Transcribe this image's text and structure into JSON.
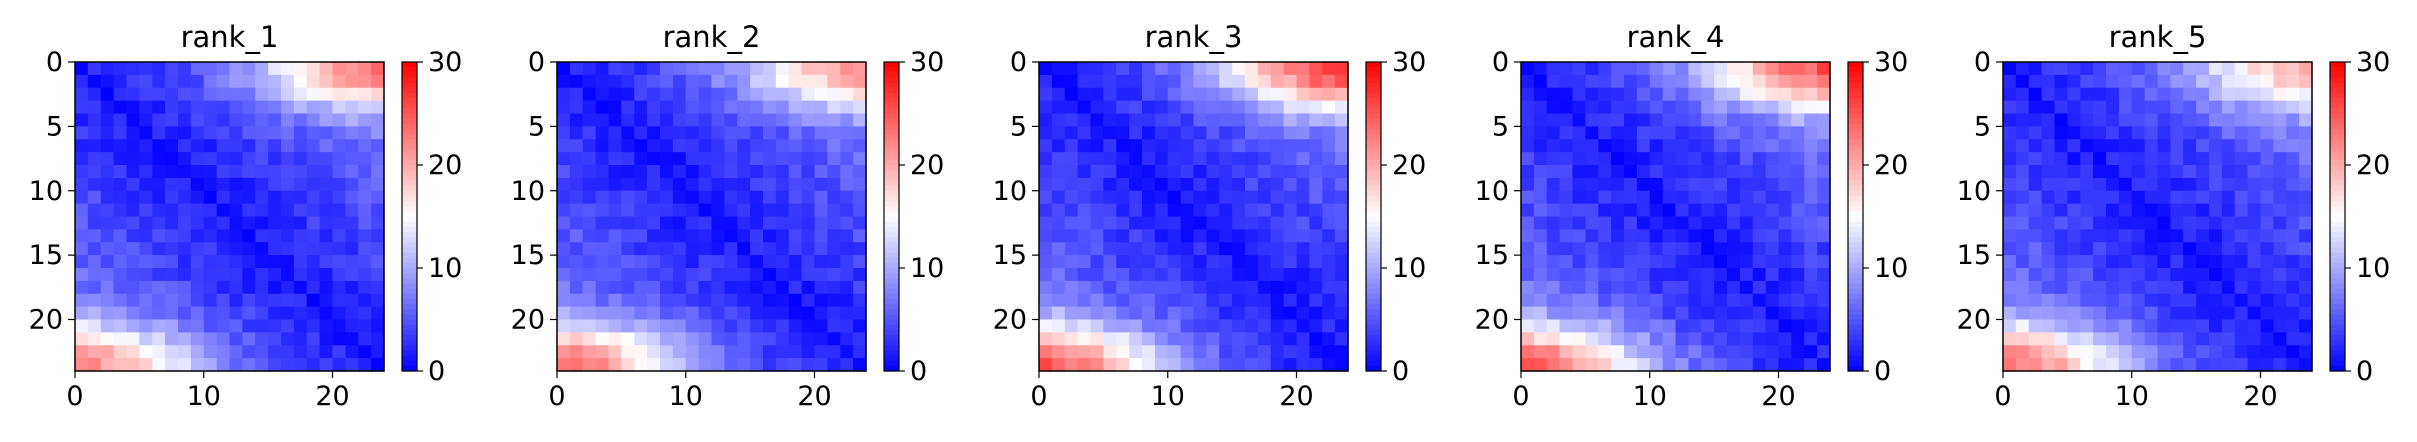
{
  "chart_data": [
    {
      "type": "heatmap",
      "title": "rank_1",
      "n": 24,
      "x_ticks": [
        0,
        10,
        20
      ],
      "y_ticks": [
        0,
        5,
        10,
        15,
        20
      ],
      "xlim": [
        0,
        24
      ],
      "ylim": [
        24,
        0
      ],
      "colorbar": {
        "range": [
          0,
          30
        ],
        "ticks": [
          0,
          10,
          20,
          30
        ],
        "colormap": "bwr"
      },
      "corner_profile": {
        "top_right_max": 23,
        "bottom_left_max": 22,
        "diagonal": 0
      }
    },
    {
      "type": "heatmap",
      "title": "rank_2",
      "n": 24,
      "x_ticks": [
        0,
        10,
        20
      ],
      "y_ticks": [
        0,
        5,
        10,
        15,
        20
      ],
      "xlim": [
        0,
        24
      ],
      "ylim": [
        24,
        0
      ],
      "colorbar": {
        "range": [
          0,
          30
        ],
        "ticks": [
          0,
          10,
          20,
          30
        ],
        "colormap": "bwr"
      },
      "corner_profile": {
        "top_right_max": 21,
        "bottom_left_max": 24,
        "diagonal": 0
      }
    },
    {
      "type": "heatmap",
      "title": "rank_3",
      "n": 24,
      "x_ticks": [
        0,
        10,
        20
      ],
      "y_ticks": [
        0,
        5,
        10,
        15,
        20
      ],
      "xlim": [
        0,
        24
      ],
      "ylim": [
        24,
        0
      ],
      "colorbar": {
        "range": [
          0,
          30
        ],
        "ticks": [
          0,
          10,
          20,
          30
        ],
        "colormap": "bwr"
      },
      "corner_profile": {
        "top_right_max": 27,
        "bottom_left_max": 25,
        "diagonal": 0
      }
    },
    {
      "type": "heatmap",
      "title": "rank_4",
      "n": 24,
      "x_ticks": [
        0,
        10,
        20
      ],
      "y_ticks": [
        0,
        5,
        10,
        15,
        20
      ],
      "xlim": [
        0,
        24
      ],
      "ylim": [
        24,
        0
      ],
      "colorbar": {
        "range": [
          0,
          30
        ],
        "ticks": [
          0,
          10,
          20,
          30
        ],
        "colormap": "bwr"
      },
      "corner_profile": {
        "top_right_max": 25,
        "bottom_left_max": 24,
        "diagonal": 0
      }
    },
    {
      "type": "heatmap",
      "title": "rank_5",
      "n": 24,
      "x_ticks": [
        0,
        10,
        20
      ],
      "y_ticks": [
        0,
        5,
        10,
        15,
        20
      ],
      "xlim": [
        0,
        24
      ],
      "ylim": [
        24,
        0
      ],
      "colorbar": {
        "range": [
          0,
          30
        ],
        "ticks": [
          0,
          10,
          20,
          30
        ],
        "colormap": "bwr"
      },
      "corner_profile": {
        "top_right_max": 20,
        "bottom_left_max": 23,
        "diagonal": 0
      }
    }
  ]
}
